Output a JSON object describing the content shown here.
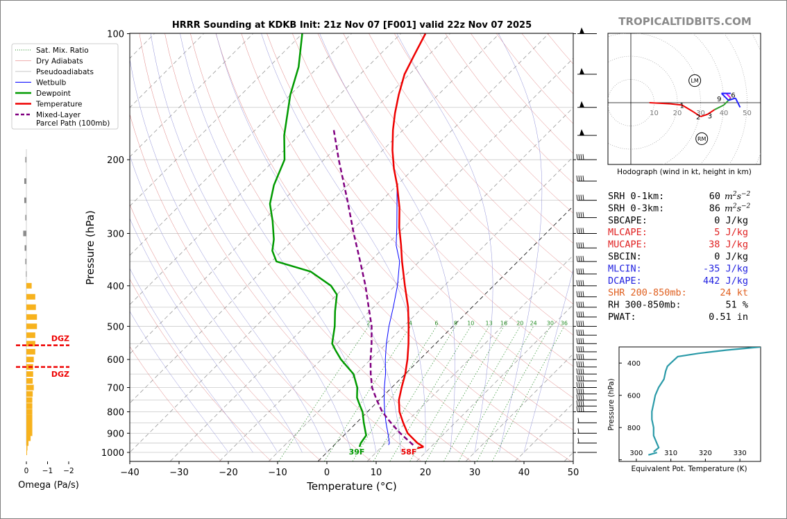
{
  "header": {
    "title": "HRRR Sounding at KDKB Init: 21z Nov 07 [F001] valid 22z Nov 07 2025",
    "watermark": "TROPICALTIDBITS.COM"
  },
  "skewt": {
    "xlabel": "Temperature (°C)",
    "ylabel": "Pressure (hPa)",
    "x_ticks": [
      "−40",
      "−30",
      "−20",
      "−10",
      "0",
      "10",
      "20",
      "30",
      "40",
      "50"
    ],
    "y_ticks": [
      "100",
      "200",
      "300",
      "400",
      "500",
      "600",
      "700",
      "800",
      "900",
      "1000"
    ],
    "surface_dewpoint_label": "39F",
    "surface_temp_label": "58F",
    "mixing_ratio_labels": [
      "2",
      "4",
      "6",
      "8",
      "10",
      "13",
      "16",
      "20",
      "24",
      "30",
      "36"
    ],
    "legend": [
      {
        "label": "Sat. Mix. Ratio",
        "color": "#228b22",
        "style": "dotted",
        "width": 1
      },
      {
        "label": "Dry Adiabats",
        "color": "#e06060",
        "style": "solid",
        "width": 0.6
      },
      {
        "label": "Pseudoadiabats",
        "color": "#8f8f8f",
        "style": "solid",
        "width": 0.6
      },
      {
        "label": "Wetbulb",
        "color": "#0000ff",
        "style": "solid",
        "width": 1
      },
      {
        "label": "Dewpoint",
        "color": "#009a00",
        "style": "solid",
        "width": 2.5
      },
      {
        "label": "Temperature",
        "color": "#ee0000",
        "style": "solid",
        "width": 2.5
      },
      {
        "label": "Mixed-Layer",
        "label2": "Parcel Path (100mb)",
        "color": "#800080",
        "style": "dashed",
        "width": 2.5
      }
    ]
  },
  "chart_data": [
    {
      "type": "line",
      "title": "HRRR Sounding at KDKB Init: 21z Nov 07 [F001] valid 22z Nov 07 2025",
      "xlabel": "Temperature (°C)",
      "ylabel": "Pressure (hPa)",
      "xlim": [
        -40,
        50
      ],
      "ylim": [
        1050,
        100
      ],
      "y_scale": "log",
      "series": [
        {
          "name": "Temperature",
          "color": "#ee0000",
          "points": [
            [
              970,
              18.5
            ],
            [
              950,
              16.5
            ],
            [
              900,
              12.5
            ],
            [
              850,
              9.5
            ],
            [
              800,
              6.5
            ],
            [
              750,
              4
            ],
            [
              700,
              2
            ],
            [
              650,
              0
            ],
            [
              600,
              -2.5
            ],
            [
              550,
              -5.5
            ],
            [
              500,
              -9
            ],
            [
              450,
              -13
            ],
            [
              400,
              -18
            ],
            [
              350,
              -23.5
            ],
            [
              320,
              -27
            ],
            [
              290,
              -31
            ],
            [
              260,
              -35
            ],
            [
              230,
              -40
            ],
            [
              210,
              -44
            ],
            [
              190,
              -48
            ],
            [
              170,
              -52
            ],
            [
              155,
              -55
            ],
            [
              140,
              -58
            ],
            [
              125,
              -61
            ],
            [
              112,
              -63
            ],
            [
              100,
              -65
            ]
          ]
        },
        {
          "name": "Dewpoint",
          "color": "#009a00",
          "points": [
            [
              970,
              5.5
            ],
            [
              950,
              5
            ],
            [
              910,
              4.5
            ],
            [
              900,
              4
            ],
            [
              850,
              1.5
            ],
            [
              800,
              -1
            ],
            [
              770,
              -3
            ],
            [
              740,
              -5
            ],
            [
              700,
              -7
            ],
            [
              650,
              -10.5
            ],
            [
              600,
              -16
            ],
            [
              570,
              -19
            ],
            [
              550,
              -21
            ],
            [
              500,
              -24
            ],
            [
              460,
              -27
            ],
            [
              420,
              -30
            ],
            [
              400,
              -33
            ],
            [
              370,
              -40
            ],
            [
              350,
              -49
            ],
            [
              330,
              -52
            ],
            [
              310,
              -54
            ],
            [
              280,
              -58
            ],
            [
              255,
              -62
            ],
            [
              230,
              -65
            ],
            [
              200,
              -68
            ],
            [
              175,
              -73
            ],
            [
              140,
              -80
            ],
            [
              120,
              -84
            ],
            [
              100,
              -90
            ]
          ]
        },
        {
          "name": "Wetbulb",
          "color": "#0000ff",
          "points": [
            [
              960,
              11
            ],
            [
              950,
              10.8
            ],
            [
              900,
              8.5
            ],
            [
              850,
              6
            ],
            [
              800,
              3.5
            ],
            [
              750,
              1
            ],
            [
              700,
              -1.5
            ],
            [
              650,
              -4
            ],
            [
              600,
              -7
            ],
            [
              550,
              -10
            ],
            [
              500,
              -13
            ],
            [
              450,
              -16
            ],
            [
              400,
              -19.5
            ],
            [
              350,
              -24
            ],
            [
              320,
              -28
            ],
            [
              290,
              -31.5
            ],
            [
              260,
              -35.5
            ],
            [
              230,
              -40
            ],
            [
              210,
              -44
            ],
            [
              190,
              -48
            ],
            [
              170,
              -52
            ],
            [
              155,
              -55
            ],
            [
              140,
              -58
            ],
            [
              125,
              -61
            ],
            [
              112,
              -63
            ],
            [
              100,
              -65
            ]
          ]
        },
        {
          "name": "Mixed-Layer Parcel Path (100mb)",
          "color": "#800080",
          "points": [
            [
              960,
              16
            ],
            [
              900,
              11
            ],
            [
              850,
              7
            ],
            [
              800,
              3
            ],
            [
              750,
              -0.5
            ],
            [
              700,
              -4
            ],
            [
              650,
              -7
            ],
            [
              600,
              -10
            ],
            [
              550,
              -13
            ],
            [
              500,
              -16.5
            ],
            [
              450,
              -21
            ],
            [
              400,
              -26
            ],
            [
              350,
              -32
            ],
            [
              300,
              -39
            ],
            [
              250,
              -47
            ],
            [
              200,
              -57
            ],
            [
              170,
              -64
            ]
          ]
        }
      ],
      "surface_labels": {
        "dewpoint": "39F",
        "temperature": "58F"
      }
    },
    {
      "type": "bar",
      "title": "",
      "xlabel": "Omega (Pa/s)",
      "x_ticks": [
        "0",
        "−1",
        "−2"
      ],
      "xlim": [
        0.15,
        -2.4
      ],
      "levels_hpa": [
        1000,
        975,
        950,
        925,
        900,
        875,
        850,
        825,
        800,
        775,
        750,
        725,
        700,
        675,
        650,
        625,
        600,
        575,
        550,
        525,
        500,
        475,
        450,
        425,
        400,
        375,
        350,
        325,
        300,
        275,
        250,
        225,
        200
      ],
      "values": [
        -0.02,
        -0.05,
        -0.1,
        -0.2,
        -0.28,
        -0.28,
        -0.28,
        -0.28,
        -0.28,
        -0.28,
        -0.28,
        -0.3,
        -0.35,
        -0.3,
        -0.32,
        -0.32,
        -0.35,
        -0.42,
        -0.42,
        -0.42,
        -0.5,
        -0.5,
        -0.45,
        -0.42,
        -0.25,
        0.02,
        0.05,
        0.08,
        0.15,
        0.05,
        0.1,
        0.1,
        0.05
      ],
      "annotations": [
        {
          "label": "DGZ",
          "pressure_hpa": 555
        },
        {
          "label": "DGZ",
          "pressure_hpa": 625
        }
      ]
    },
    {
      "type": "line",
      "title": "Hodograph (wind in kt, height in km)",
      "xlim": [
        -10,
        55
      ],
      "ylim": [
        -27,
        30
      ],
      "ring_labels": [
        "10",
        "20",
        "30",
        "40",
        "50"
      ],
      "series": [
        {
          "name": "Hodograph",
          "points": [
            [
              8,
              0
            ],
            [
              17,
              -0.5
            ],
            [
              22,
              -1
            ],
            [
              27,
              -4
            ],
            [
              30,
              -6
            ],
            [
              33,
              -5
            ],
            [
              36,
              -3
            ],
            [
              40,
              -1
            ],
            [
              43,
              2
            ],
            [
              41,
              4
            ],
            [
              39,
              4
            ],
            [
              42,
              1
            ],
            [
              45,
              2
            ],
            [
              47,
              -2
            ]
          ]
        }
      ],
      "height_labels": [
        "1",
        "2",
        "3",
        "9",
        "6"
      ],
      "storm_motion_labels": [
        "LM",
        "RM"
      ]
    },
    {
      "type": "line",
      "title": "",
      "xlabel": "Equivalent Pot. Temperature (K)",
      "ylabel": "Pressure (hPa)",
      "x_ticks": [
        "300",
        "310",
        "320",
        "330"
      ],
      "y_ticks": [
        "400",
        "600",
        "800"
      ],
      "xlim": [
        295,
        336
      ],
      "ylim": [
        1010,
        300
      ],
      "series": [
        {
          "name": "Equivalent Pot. Temperature",
          "color": "#2a9aa8",
          "points": [
            [
              950,
              305
            ],
            [
              925,
              306.5
            ],
            [
              900,
              306
            ],
            [
              850,
              305
            ],
            [
              800,
              305
            ],
            [
              750,
              304.5
            ],
            [
              700,
              304.5
            ],
            [
              650,
              305
            ],
            [
              600,
              305.5
            ],
            [
              550,
              306.5
            ],
            [
              500,
              308
            ],
            [
              450,
              308.5
            ],
            [
              420,
              309
            ],
            [
              400,
              310
            ],
            [
              380,
              311
            ],
            [
              360,
              312
            ],
            [
              340,
              318
            ],
            [
              320,
              326
            ],
            [
              300,
              336
            ]
          ]
        }
      ]
    }
  ],
  "omega": {
    "xlabel": "Omega (Pa/s)",
    "ticks": [
      "0",
      "−1",
      "−2"
    ],
    "dgz_labels": [
      "DGZ",
      "DGZ"
    ]
  },
  "hodograph": {
    "caption": "Hodograph (wind in kt, height in km)",
    "ring_labels": [
      "10",
      "20",
      "30",
      "40",
      "50"
    ],
    "height_labels": [
      "1",
      "2",
      "3",
      "9",
      "6"
    ],
    "lm": "LM",
    "rm": "RM"
  },
  "indices": [
    {
      "label": "SRH 0-1km:",
      "value": "60",
      "unit": "m2s-2",
      "color": "#000000"
    },
    {
      "label": "SRH 0-3km:",
      "value": "86",
      "unit": "m2s-2",
      "color": "#000000"
    },
    {
      "label": "SBCAPE:",
      "value": "0 J/kg",
      "color": "#000000"
    },
    {
      "label": "MLCAPE:",
      "value": "5 J/kg",
      "color": "#e02020"
    },
    {
      "label": "MUCAPE:",
      "value": "38 J/kg",
      "color": "#e02020"
    },
    {
      "label": "SBCIN:",
      "value": "0 J/kg",
      "color": "#000000"
    },
    {
      "label": "MLCIN:",
      "value": "-35 J/kg",
      "color": "#2020e0"
    },
    {
      "label": "DCAPE:",
      "value": "442 J/kg",
      "color": "#2020e0"
    },
    {
      "label": "SHR 200-850mb:",
      "value": "24 kt",
      "color": "#e06020"
    },
    {
      "label": "RH 300-850mb:",
      "value": "51 %",
      "color": "#000000"
    },
    {
      "label": "PWAT:",
      "value": "0.51 in",
      "color": "#000000"
    }
  ],
  "theta_e": {
    "xlabel": "Equivalent Pot. Temperature (K)",
    "ylabel": "Pressure (hPa)",
    "x_ticks": [
      "300",
      "310",
      "320",
      "330"
    ],
    "y_ticks": [
      "400",
      "600",
      "800"
    ]
  }
}
